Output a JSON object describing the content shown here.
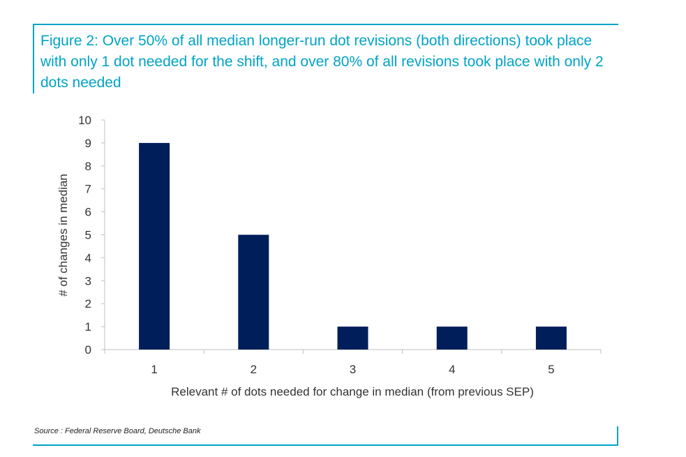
{
  "title": "Figure 2: Over 50% of all median longer-run dot revisions (both directions) took place with only 1 dot needed for the shift, and over 80% of all revisions took place with only 2 dots needed",
  "source": "Source : Federal Reserve Board, Deutsche Bank",
  "colors": {
    "accent": "#00a3c7",
    "bar": "#001e5a"
  },
  "chart_data": {
    "type": "bar",
    "categories": [
      "1",
      "2",
      "3",
      "4",
      "5"
    ],
    "values": [
      9,
      5,
      1,
      1,
      1
    ],
    "xlabel": "Relevant # of dots needed for change in median (from previous SEP)",
    "ylabel": "# of changes in median",
    "ylim": [
      0,
      10
    ],
    "yticks": [
      0,
      1,
      2,
      3,
      4,
      5,
      6,
      7,
      8,
      9,
      10
    ],
    "grid": false,
    "legend": "none"
  }
}
